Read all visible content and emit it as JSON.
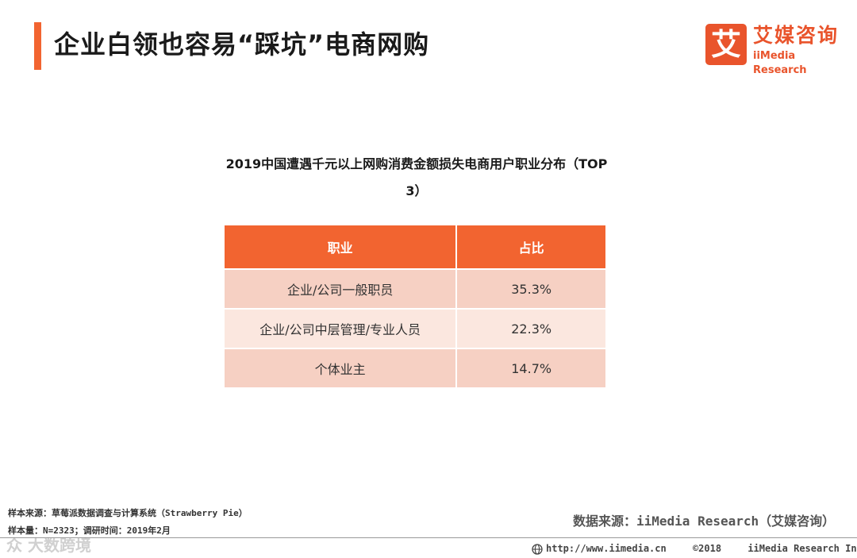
{
  "header": {
    "title": "企业白领也容易“踩坑”电商网购",
    "logo_mark": "艾",
    "logo_cn": "艾媒咨询",
    "logo_en": "iiMedia Research"
  },
  "table": {
    "caption_line1": "2019中国遭遇千元以上网购消费金额损失电商用户职业分布（TOP",
    "caption_line2": "3）",
    "headers": [
      "职业",
      "占比"
    ],
    "rows": [
      {
        "occupation": "企业/公司一般职员",
        "share": "35.3%"
      },
      {
        "occupation": "企业/公司中层管理/专业人员",
        "share": "22.3%"
      },
      {
        "occupation": "个体业主",
        "share": "14.7%"
      }
    ]
  },
  "footnotes": {
    "sample_source": "样本来源：草莓派数据调查与计算系统（Strawberry  Pie）",
    "sample_size": "样本量：N=2323；调研时间：2019年2月"
  },
  "source": "数据来源：iiMedia Research（艾媒咨询）",
  "watermark": "众 大数跨境",
  "footer": {
    "url": "http://www.iimedia.cn",
    "copyright": "©2018",
    "company": "iiMedia Research Inc"
  },
  "colors": {
    "accent": "#f26430",
    "row_dark": "#f6d0c3",
    "row_light": "#fbe7df"
  }
}
